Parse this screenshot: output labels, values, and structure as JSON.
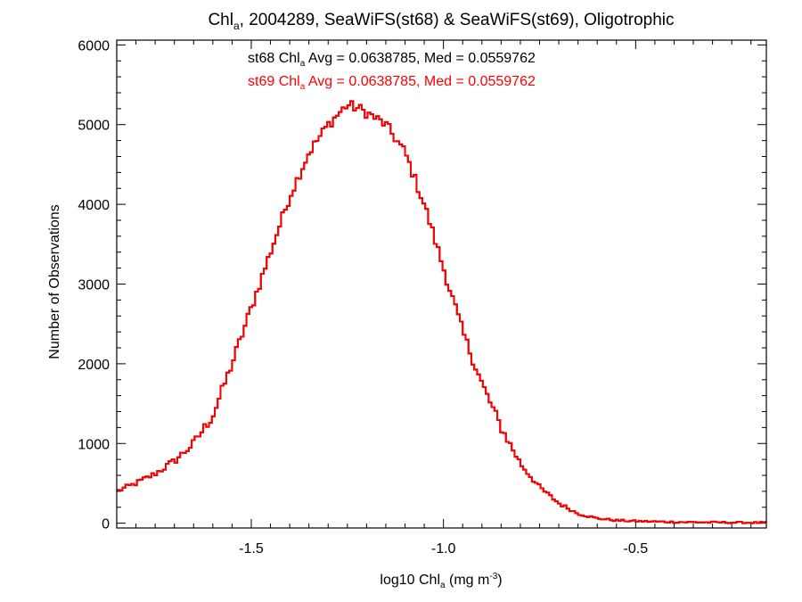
{
  "chart_data": {
    "type": "histogram",
    "title": {
      "pre": "Chl",
      "sub": "a",
      "post": ", 2004289, SeaWiFS(st68) & SeaWiFS(st69), Oligotrophic"
    },
    "xlabel": {
      "pre": "log10 Chl",
      "sub": "a",
      "mid": " (mg m",
      "sup": "-3",
      "post": ")"
    },
    "ylabel": "Number of Observations",
    "xlim": [
      -1.85,
      -0.16
    ],
    "ylim": [
      -60,
      6060
    ],
    "xticks": [
      -1.5,
      -1.0,
      -0.5
    ],
    "xtick_labels": [
      "-1.5",
      "-1.0",
      "-0.5"
    ],
    "yticks": [
      0,
      1000,
      2000,
      3000,
      4000,
      5000,
      6000
    ],
    "ytick_labels": [
      "0",
      "1000",
      "2000",
      "3000",
      "4000",
      "5000",
      "6000"
    ],
    "grid": false,
    "series": [
      {
        "name": "st68",
        "color": "#000000"
      },
      {
        "name": "st69",
        "color": "#ff0000"
      }
    ],
    "annotations": [
      {
        "series": "st68",
        "color": "#000000",
        "pre": "st68 Chl",
        "sub": "a",
        "post": " Avg = 0.0638785, Med = 0.0559762"
      },
      {
        "series": "st69",
        "color": "#ff0000",
        "pre": "st69 Chl",
        "sub": "a",
        "post": " Avg = 0.0638785, Med = 0.0559762"
      }
    ],
    "shape_points": {
      "x": [
        -1.85,
        -1.8,
        -1.75,
        -1.7,
        -1.65,
        -1.6,
        -1.55,
        -1.5,
        -1.45,
        -1.4,
        -1.35,
        -1.3,
        -1.25,
        -1.22,
        -1.2,
        -1.15,
        -1.1,
        -1.05,
        -1.0,
        -0.95,
        -0.9,
        -0.85,
        -0.8,
        -0.75,
        -0.7,
        -0.65,
        -0.6,
        -0.55,
        -0.5,
        -0.4,
        -0.3,
        -0.16
      ],
      "y": [
        400,
        500,
        620,
        780,
        1000,
        1350,
        2000,
        2700,
        3400,
        4100,
        4650,
        5000,
        5250,
        5200,
        5150,
        5000,
        4650,
        4000,
        3200,
        2400,
        1750,
        1200,
        750,
        450,
        250,
        120,
        60,
        35,
        25,
        15,
        10,
        5
      ]
    },
    "bin_width": 0.0075,
    "noise_amplitude": 70
  }
}
